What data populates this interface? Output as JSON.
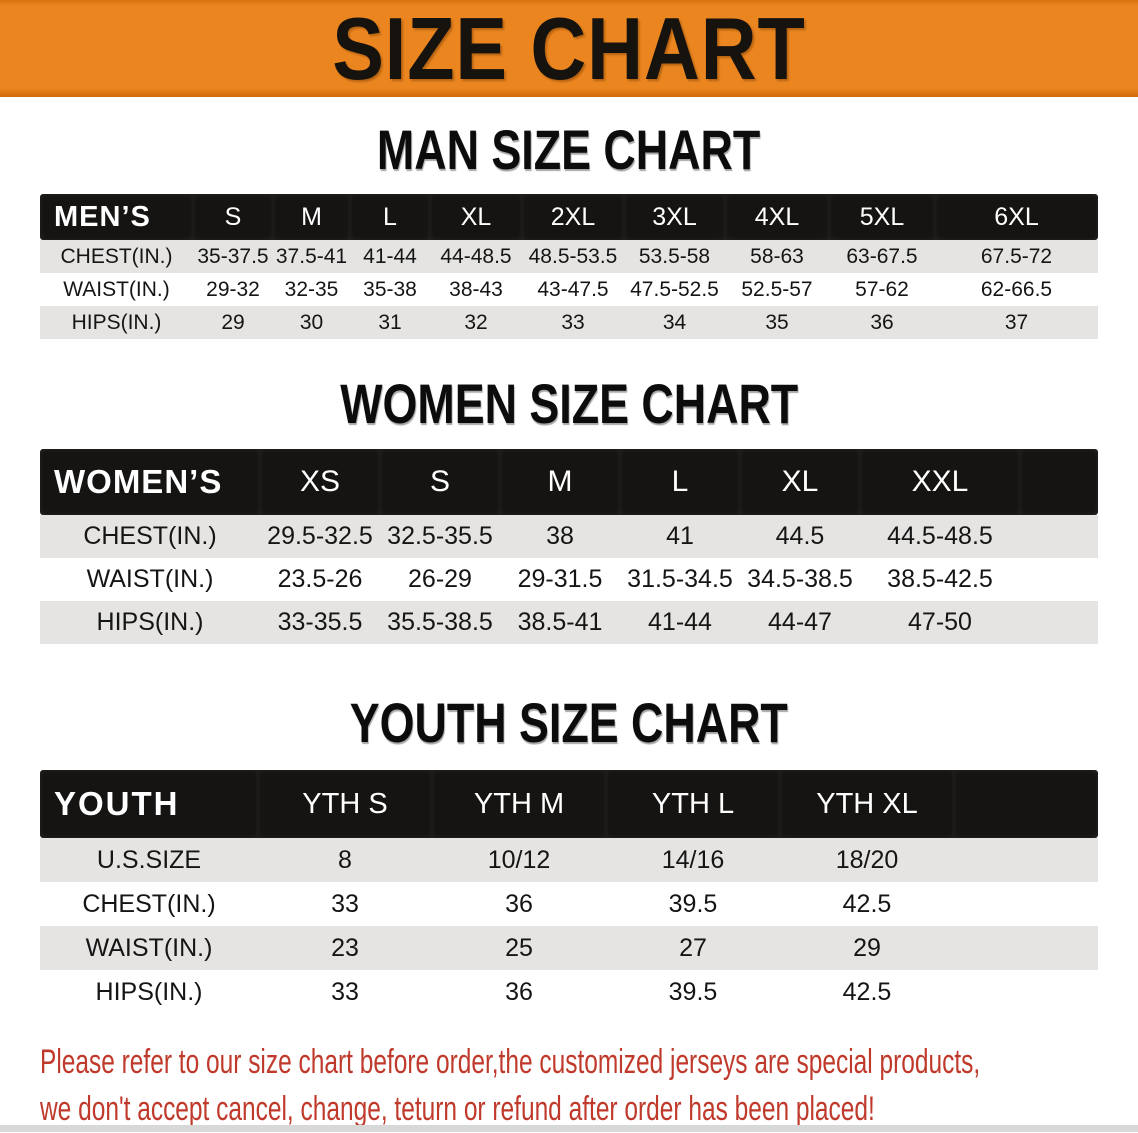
{
  "banner": {
    "title": "SIZE CHART"
  },
  "sections": [
    {
      "heading": "MAN SIZE CHART",
      "table": {
        "corner": "MEN’S",
        "columns": [
          "S",
          "M",
          "L",
          "XL",
          "2XL",
          "3XL",
          "4XL",
          "5XL",
          "6XL"
        ],
        "rows": [
          {
            "label": "CHEST(IN.)",
            "values": [
              "35-37.5",
              "37.5-41",
              "41-44",
              "44-48.5",
              "48.5-53.5",
              "53.5-58",
              "58-63",
              "63-67.5",
              "67.5-72"
            ]
          },
          {
            "label": "WAIST(IN.)",
            "values": [
              "29-32",
              "32-35",
              "35-38",
              "38-43",
              "43-47.5",
              "47.5-52.5",
              "52.5-57",
              "57-62",
              "62-66.5"
            ]
          },
          {
            "label": "HIPS(IN.)",
            "values": [
              "29",
              "30",
              "31",
              "32",
              "33",
              "34",
              "35",
              "36",
              "37"
            ]
          }
        ]
      }
    },
    {
      "heading": "WOMEN SIZE CHART",
      "table": {
        "corner": "WOMEN’S",
        "columns": [
          "XS",
          "S",
          "M",
          "L",
          "XL",
          "XXL"
        ],
        "rows": [
          {
            "label": "CHEST(IN.)",
            "values": [
              "29.5-32.5",
              "32.5-35.5",
              "38",
              "41",
              "44.5",
              "44.5-48.5"
            ]
          },
          {
            "label": "WAIST(IN.)",
            "values": [
              "23.5-26",
              "26-29",
              "29-31.5",
              "31.5-34.5",
              "34.5-38.5",
              "38.5-42.5"
            ]
          },
          {
            "label": "HIPS(IN.)",
            "values": [
              "33-35.5",
              "35.5-38.5",
              "38.5-41",
              "41-44",
              "44-47",
              "47-50"
            ]
          }
        ]
      }
    },
    {
      "heading": "YOUTH SIZE CHART",
      "table": {
        "corner": "YOUTH",
        "columns": [
          "YTH S",
          "YTH M",
          "YTH L",
          "YTH XL"
        ],
        "rows": [
          {
            "label": "U.S.SIZE",
            "values": [
              "8",
              "10/12",
              "14/16",
              "18/20"
            ]
          },
          {
            "label": "CHEST(IN.)",
            "values": [
              "33",
              "36",
              "39.5",
              "42.5"
            ]
          },
          {
            "label": "WAIST(IN.)",
            "values": [
              "23",
              "25",
              "27",
              "29"
            ]
          },
          {
            "label": "HIPS(IN.)",
            "values": [
              "33",
              "36",
              "39.5",
              "42.5"
            ]
          }
        ]
      }
    }
  ],
  "footer": {
    "line1": "Please refer to our size chart before order,the customized jerseys are special products,",
    "line2": "we don't accept cancel, change, teturn or refund after order has been placed!"
  },
  "colors": {
    "banner_bg": "#ea8520",
    "header_row_bg": "#161412",
    "stripe_bg": "#e5e4e2",
    "footer_text": "#c03a2c"
  }
}
